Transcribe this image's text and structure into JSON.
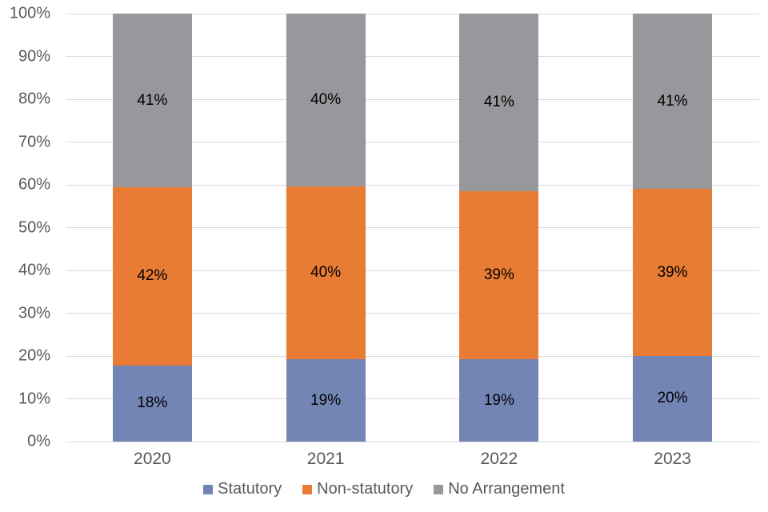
{
  "chart_data": {
    "type": "bar",
    "variant": "stacked-100-percent-column",
    "categories": [
      "2020",
      "2021",
      "2022",
      "2023"
    ],
    "series": [
      {
        "name": "Statutory",
        "color": "#7285B5",
        "values": [
          18,
          19,
          19,
          20
        ],
        "labels": [
          "18%",
          "19%",
          "19%",
          "20%"
        ]
      },
      {
        "name": "Non-statutory",
        "color": "#E87C35",
        "values": [
          42,
          40,
          39,
          39
        ],
        "labels": [
          "42%",
          "40%",
          "39%",
          "39%"
        ]
      },
      {
        "name": "No Arrangement",
        "color": "#97989B",
        "values": [
          41,
          40,
          41,
          41
        ],
        "labels": [
          "41%",
          "40%",
          "41%",
          "41%"
        ]
      }
    ],
    "y_axis": {
      "ticks": [
        "0%",
        "10%",
        "20%",
        "30%",
        "40%",
        "50%",
        "60%",
        "70%",
        "80%",
        "90%",
        "100%"
      ],
      "min": 0,
      "max": 100,
      "grid": true
    },
    "xlabel": "",
    "ylabel": "",
    "legend_position": "bottom"
  },
  "colors": {
    "background": "#FFFFFF",
    "gridline": "#D9D9D9",
    "axis_text": "#595959",
    "data_label_text": "#000000",
    "statutory": "#7285B5",
    "non_statutory": "#E87C35",
    "no_arrangement": "#97989B"
  }
}
